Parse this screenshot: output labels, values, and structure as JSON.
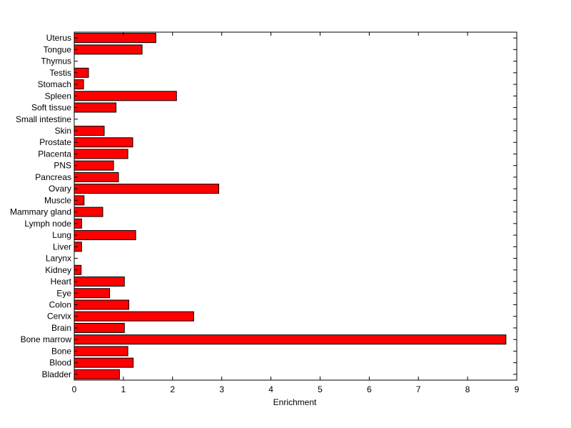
{
  "chart_data": {
    "type": "bar",
    "orientation": "horizontal",
    "title": "",
    "xlabel": "Enrichment",
    "ylabel": "",
    "xlim": [
      0,
      9
    ],
    "xticks": [
      0,
      1,
      2,
      3,
      4,
      5,
      6,
      7,
      8,
      9
    ],
    "grid": false,
    "bar_color": "#ff0000",
    "bar_edge_color": "#000000",
    "categories": [
      "Bladder",
      "Blood",
      "Bone",
      "Bone marrow",
      "Brain",
      "Cervix",
      "Colon",
      "Eye",
      "Heart",
      "Kidney",
      "Larynx",
      "Liver",
      "Lung",
      "Lymph node",
      "Mammary gland",
      "Muscle",
      "Ovary",
      "Pancreas",
      "PNS",
      "Placenta",
      "Prostate",
      "Skin",
      "Small intestine",
      "Soft tissue",
      "Spleen",
      "Stomach",
      "Testis",
      "Thymus",
      "Tongue",
      "Uterus"
    ],
    "values": [
      0.92,
      1.2,
      1.09,
      8.78,
      1.02,
      2.43,
      1.11,
      0.72,
      1.02,
      0.14,
      0,
      0.15,
      1.25,
      0.15,
      0.58,
      0.2,
      2.94,
      0.9,
      0.8,
      1.09,
      1.19,
      0.61,
      0,
      0.85,
      2.08,
      0.19,
      0.29,
      0,
      1.38,
      1.66
    ]
  }
}
